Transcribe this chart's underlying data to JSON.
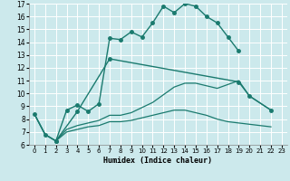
{
  "xlabel": "Humidex (Indice chaleur)",
  "xlim": [
    -0.5,
    23.5
  ],
  "ylim": [
    6,
    17
  ],
  "yticks": [
    6,
    7,
    8,
    9,
    10,
    11,
    12,
    13,
    14,
    15,
    16,
    17
  ],
  "xticks": [
    0,
    1,
    2,
    3,
    4,
    5,
    6,
    7,
    8,
    9,
    10,
    11,
    12,
    13,
    14,
    15,
    16,
    17,
    18,
    19,
    20,
    21,
    22,
    23
  ],
  "background_color": "#cce9ec",
  "line_color": "#1a7a6e",
  "series": [
    {
      "x": [
        0,
        1,
        2,
        3,
        4,
        5,
        6,
        7,
        8,
        9,
        10,
        11,
        12,
        13,
        14,
        15,
        16,
        17,
        18,
        19
      ],
      "y": [
        8.4,
        6.8,
        6.3,
        8.7,
        9.1,
        8.6,
        9.2,
        14.3,
        14.2,
        14.8,
        14.4,
        15.5,
        16.8,
        16.3,
        17.0,
        16.8,
        16.0,
        15.5,
        14.4,
        13.3
      ],
      "marker": "o",
      "markersize": 2.5,
      "linestyle": "-",
      "linewidth": 1.0
    },
    {
      "x": [
        2,
        4,
        7,
        19,
        20,
        22
      ],
      "y": [
        6.3,
        8.6,
        12.7,
        10.9,
        9.8,
        8.7
      ],
      "marker": "o",
      "markersize": 2.5,
      "linestyle": "-",
      "linewidth": 1.0
    },
    {
      "x": [
        0,
        1,
        2,
        3,
        4,
        5,
        6,
        7,
        8,
        9,
        10,
        11,
        12,
        13,
        14,
        15,
        16,
        17,
        18,
        19,
        20,
        22
      ],
      "y": [
        8.4,
        6.8,
        6.3,
        7.2,
        7.5,
        7.7,
        7.9,
        8.3,
        8.3,
        8.5,
        8.9,
        9.3,
        9.9,
        10.5,
        10.8,
        10.8,
        10.6,
        10.4,
        10.7,
        11.0,
        9.8,
        8.7
      ],
      "marker": null,
      "markersize": 0,
      "linestyle": "-",
      "linewidth": 0.9
    },
    {
      "x": [
        0,
        1,
        2,
        3,
        4,
        5,
        6,
        7,
        8,
        9,
        10,
        11,
        12,
        13,
        14,
        15,
        16,
        17,
        18,
        19,
        20,
        22
      ],
      "y": [
        8.4,
        6.8,
        6.3,
        7.0,
        7.2,
        7.4,
        7.5,
        7.8,
        7.8,
        7.9,
        8.1,
        8.3,
        8.5,
        8.7,
        8.7,
        8.5,
        8.3,
        8.0,
        7.8,
        7.7,
        7.6,
        7.4
      ],
      "marker": null,
      "markersize": 0,
      "linestyle": "-",
      "linewidth": 0.9
    }
  ]
}
